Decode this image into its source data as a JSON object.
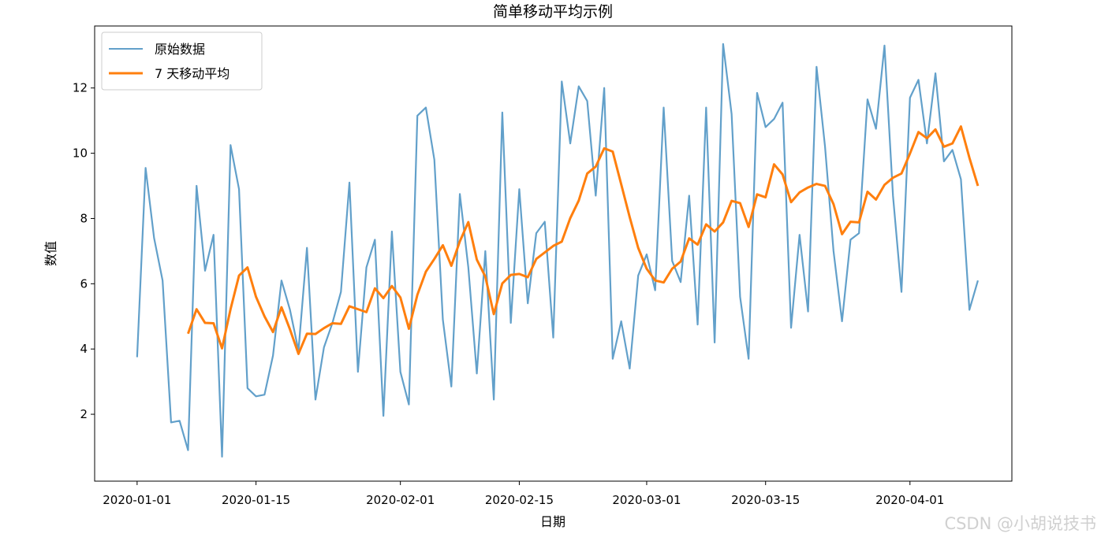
{
  "chart_data": {
    "type": "line",
    "title": "简单移动平均示例",
    "xlabel": "日期",
    "ylabel": "数值",
    "start_date": "2020-01-01",
    "x_ticks": [
      "2020-01-01",
      "2020-01-15",
      "2020-02-01",
      "2020-02-15",
      "2020-03-01",
      "2020-03-15",
      "2020-04-01"
    ],
    "y_ticks": [
      2,
      4,
      6,
      8,
      10,
      12
    ],
    "xlim": [
      "2019-12-27",
      "2020-04-13"
    ],
    "ylim": [
      -0.05,
      13.9
    ],
    "legend_position": "upper-left",
    "series": [
      {
        "name": "原始数据",
        "color": "#1f77b4",
        "values": [
          3.75,
          9.55,
          7.4,
          6.1,
          1.75,
          1.8,
          0.9,
          9.0,
          6.4,
          7.5,
          0.7,
          10.25,
          8.9,
          2.8,
          2.55,
          2.6,
          3.8,
          6.1,
          5.2,
          3.95,
          7.1,
          2.45,
          4.05,
          4.8,
          5.75,
          9.1,
          3.3,
          6.5,
          7.35,
          1.95,
          7.6,
          3.3,
          2.3,
          11.15,
          11.4,
          9.8,
          4.9,
          2.85,
          8.75,
          6.5,
          3.25,
          7.0,
          2.45,
          11.25,
          4.8,
          8.9,
          5.4,
          7.55,
          7.9,
          4.35,
          12.2,
          10.3,
          12.05,
          11.6,
          8.7,
          12.0,
          3.7,
          4.85,
          3.4,
          6.25,
          6.9,
          5.8,
          11.4,
          6.7,
          6.05,
          8.7,
          4.75,
          11.4,
          4.2,
          13.35,
          11.2,
          5.6,
          3.7,
          11.85,
          10.8,
          11.05,
          11.55,
          4.65,
          7.5,
          5.15,
          12.65,
          10.2,
          7.0,
          4.85,
          7.35,
          7.55,
          11.65,
          10.75,
          13.3,
          8.7,
          5.75,
          11.7,
          12.25,
          10.3,
          12.45,
          9.75,
          10.1,
          9.2,
          5.2,
          6.1
        ]
      },
      {
        "name": "7 天移动平均",
        "color": "#ff7f0e",
        "values": [
          null,
          null,
          null,
          null,
          null,
          null,
          4.47,
          5.22,
          4.8,
          4.79,
          4.02,
          5.22,
          6.25,
          6.5,
          5.6,
          5.0,
          4.52,
          5.28,
          4.6,
          3.85,
          4.47,
          4.46,
          4.64,
          4.79,
          4.77,
          5.31,
          5.22,
          5.13,
          5.86,
          5.56,
          5.93,
          5.58,
          4.62,
          5.66,
          6.37,
          6.76,
          7.18,
          6.55,
          7.3,
          7.89,
          6.74,
          6.22,
          5.07,
          6.01,
          6.27,
          6.3,
          6.2,
          6.76,
          6.96,
          7.16,
          7.29,
          8.01,
          8.55,
          9.38,
          9.59,
          10.15,
          10.05,
          9.05,
          8.04,
          7.1,
          6.46,
          6.1,
          6.04,
          6.46,
          6.68,
          7.39,
          7.2,
          7.82,
          7.6,
          7.88,
          8.54,
          8.47,
          7.74,
          8.74,
          8.65,
          9.66,
          9.35,
          8.5,
          8.8,
          8.95,
          9.06,
          9.0,
          8.44,
          7.52,
          7.9,
          7.88,
          8.82,
          8.58,
          9.03,
          9.25,
          9.38,
          9.99,
          10.65,
          10.46,
          10.73,
          10.2,
          10.3,
          10.82,
          9.86,
          9.0
        ]
      }
    ],
    "grid": false
  },
  "watermark": "CSDN @小胡说技书"
}
